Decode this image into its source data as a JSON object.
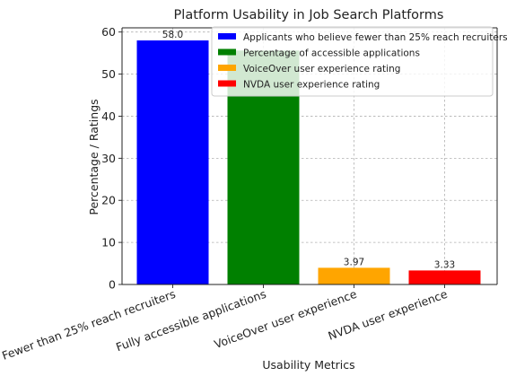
{
  "chart_data": {
    "type": "bar",
    "title": "Platform Usability in Job Search Platforms",
    "xlabel": "Usability Metrics",
    "ylabel": "Percentage / Ratings",
    "ylim": [
      0,
      61
    ],
    "yticks": [
      0,
      10,
      20,
      30,
      40,
      50,
      60
    ],
    "grid": true,
    "legend_position": "top-right",
    "categories": [
      "Fewer than 25% reach recruiters",
      "Fully accessible applications",
      "VoiceOver user experience",
      "NVDA user experience"
    ],
    "values": [
      58.0,
      55.6,
      3.97,
      3.33
    ],
    "data_labels": [
      "58.0",
      "",
      "3.97",
      "3.33"
    ],
    "colors": [
      "#0000ff",
      "#008000",
      "#ffa500",
      "#ff0000"
    ],
    "legend": [
      "Applicants who believe fewer than 25% reach recruiters",
      "Percentage of accessible applications",
      "VoiceOver user experience rating",
      "NVDA user experience rating"
    ]
  }
}
